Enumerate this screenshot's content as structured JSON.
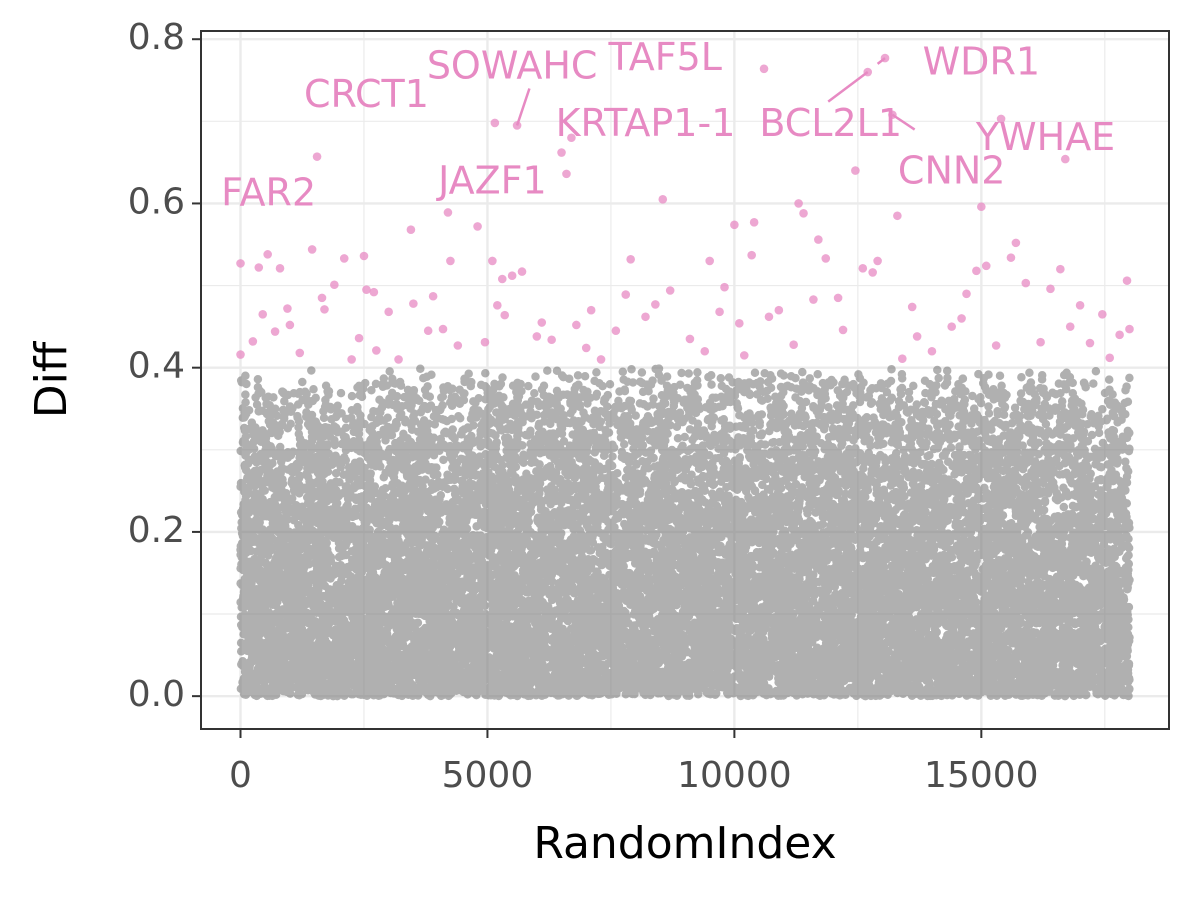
{
  "chart_data": {
    "type": "scatter",
    "title": "",
    "xlabel": "RandomIndex",
    "ylabel": "Diff",
    "xlim": [
      -800,
      18800
    ],
    "ylim": [
      -0.04,
      0.81
    ],
    "x_ticks": [
      0,
      5000,
      10000,
      15000
    ],
    "x_tick_labels": [
      "0",
      "5000",
      "10000",
      "15000"
    ],
    "y_ticks": [
      0.0,
      0.2,
      0.4,
      0.6,
      0.8
    ],
    "y_tick_labels": [
      "0.0",
      "0.2",
      "0.4",
      "0.6",
      "0.8"
    ],
    "grid": true,
    "legend": "none",
    "highlight_threshold": 0.4,
    "colors": {
      "background_points": "#7f7f7f",
      "highlight_points": "#e78ac3",
      "grid": "#ebebeb",
      "panel_border": "#333333"
    },
    "background_points": {
      "x_range": [
        0,
        18000
      ],
      "y_range": [
        0,
        0.4
      ],
      "count": 17000
    },
    "highlighted_points": [
      [
        0,
        0.527
      ],
      [
        0,
        0.416
      ],
      [
        250,
        0.432
      ],
      [
        370,
        0.522
      ],
      [
        450,
        0.465
      ],
      [
        550,
        0.538
      ],
      [
        700,
        0.444
      ],
      [
        800,
        0.521
      ],
      [
        950,
        0.472
      ],
      [
        1000,
        0.452
      ],
      [
        1200,
        0.418
      ],
      [
        1450,
        0.544
      ],
      [
        1550,
        0.657
      ],
      [
        1650,
        0.485
      ],
      [
        1700,
        0.471
      ],
      [
        1900,
        0.501
      ],
      [
        2100,
        0.533
      ],
      [
        2250,
        0.41
      ],
      [
        2400,
        0.436
      ],
      [
        2500,
        0.536
      ],
      [
        2550,
        0.495
      ],
      [
        2700,
        0.492
      ],
      [
        2750,
        0.421
      ],
      [
        3000,
        0.468
      ],
      [
        3200,
        0.41
      ],
      [
        3450,
        0.568
      ],
      [
        3500,
        0.478
      ],
      [
        3800,
        0.445
      ],
      [
        3900,
        0.487
      ],
      [
        4100,
        0.447
      ],
      [
        4200,
        0.589
      ],
      [
        4250,
        0.53
      ],
      [
        4400,
        0.427
      ],
      [
        4800,
        0.572
      ],
      [
        4950,
        0.431
      ],
      [
        5100,
        0.53
      ],
      [
        5150,
        0.698
      ],
      [
        5200,
        0.476
      ],
      [
        5300,
        0.508
      ],
      [
        5350,
        0.464
      ],
      [
        5500,
        0.512
      ],
      [
        5600,
        0.695
      ],
      [
        5700,
        0.517
      ],
      [
        6000,
        0.438
      ],
      [
        6100,
        0.455
      ],
      [
        6300,
        0.434
      ],
      [
        6500,
        0.662
      ],
      [
        6600,
        0.636
      ],
      [
        6700,
        0.68
      ],
      [
        6800,
        0.452
      ],
      [
        7000,
        0.424
      ],
      [
        7100,
        0.47
      ],
      [
        7300,
        0.41
      ],
      [
        7600,
        0.445
      ],
      [
        7800,
        0.489
      ],
      [
        7900,
        0.532
      ],
      [
        8200,
        0.462
      ],
      [
        8400,
        0.477
      ],
      [
        8550,
        0.605
      ],
      [
        8700,
        0.494
      ],
      [
        9100,
        0.435
      ],
      [
        9400,
        0.42
      ],
      [
        9500,
        0.53
      ],
      [
        9700,
        0.468
      ],
      [
        9800,
        0.498
      ],
      [
        10000,
        0.574
      ],
      [
        10100,
        0.454
      ],
      [
        10200,
        0.415
      ],
      [
        10350,
        0.537
      ],
      [
        10400,
        0.577
      ],
      [
        10600,
        0.764
      ],
      [
        10700,
        0.462
      ],
      [
        10900,
        0.47
      ],
      [
        11200,
        0.428
      ],
      [
        11300,
        0.6
      ],
      [
        11400,
        0.588
      ],
      [
        11600,
        0.483
      ],
      [
        11700,
        0.556
      ],
      [
        11850,
        0.533
      ],
      [
        12100,
        0.485
      ],
      [
        12200,
        0.446
      ],
      [
        12450,
        0.64
      ],
      [
        12600,
        0.521
      ],
      [
        12700,
        0.76
      ],
      [
        12800,
        0.516
      ],
      [
        12900,
        0.53
      ],
      [
        13050,
        0.777
      ],
      [
        13200,
        0.708
      ],
      [
        13300,
        0.585
      ],
      [
        13400,
        0.411
      ],
      [
        13600,
        0.474
      ],
      [
        13700,
        0.438
      ],
      [
        14000,
        0.42
      ],
      [
        14400,
        0.45
      ],
      [
        14600,
        0.46
      ],
      [
        14700,
        0.49
      ],
      [
        14900,
        0.518
      ],
      [
        15000,
        0.596
      ],
      [
        15100,
        0.524
      ],
      [
        15300,
        0.427
      ],
      [
        15400,
        0.703
      ],
      [
        15600,
        0.534
      ],
      [
        15700,
        0.552
      ],
      [
        15900,
        0.503
      ],
      [
        16200,
        0.431
      ],
      [
        16400,
        0.496
      ],
      [
        16600,
        0.52
      ],
      [
        16700,
        0.654
      ],
      [
        16800,
        0.45
      ],
      [
        17000,
        0.476
      ],
      [
        17200,
        0.43
      ],
      [
        17450,
        0.465
      ],
      [
        17600,
        0.412
      ],
      [
        17800,
        0.44
      ],
      [
        17950,
        0.506
      ],
      [
        18000,
        0.447
      ]
    ],
    "annotations": [
      {
        "label": "WDR1",
        "point": [
          13050,
          0.777
        ],
        "text_pos": [
          15000,
          0.77
        ],
        "segment_end": [
          12900,
          0.77
        ]
      },
      {
        "label": "TAF5L",
        "point": [
          10600,
          0.764
        ],
        "text_pos": [
          8600,
          0.775
        ]
      },
      {
        "label": "SOWAHC",
        "point": [
          5600,
          0.695
        ],
        "text_pos": [
          5500,
          0.765
        ],
        "segment_end": [
          5850,
          0.74
        ]
      },
      {
        "label": "CRCT1",
        "point": [
          5150,
          0.698
        ],
        "text_pos": [
          2550,
          0.73
        ]
      },
      {
        "label": "BCL2L1",
        "point": [
          12700,
          0.76
        ],
        "text_pos": [
          11950,
          0.695
        ],
        "segment_end": [
          11900,
          0.724
        ]
      },
      {
        "label": "KRTAP1-1",
        "point": [
          6700,
          0.68
        ],
        "text_pos": [
          8200,
          0.695
        ]
      },
      {
        "label": "YWHAE",
        "point": [
          15400,
          0.703
        ],
        "text_pos": [
          16300,
          0.678
        ]
      },
      {
        "label": "CNN2",
        "point": [
          13200,
          0.708
        ],
        "text_pos": [
          14400,
          0.637
        ],
        "segment_end": [
          13650,
          0.69
        ]
      },
      {
        "label": "JAZF1",
        "point": [
          6600,
          0.636
        ],
        "text_pos": [
          5100,
          0.625
        ]
      },
      {
        "label": "FAR2",
        "point": [
          1550,
          0.657
        ],
        "text_pos": [
          570,
          0.61
        ]
      }
    ]
  }
}
